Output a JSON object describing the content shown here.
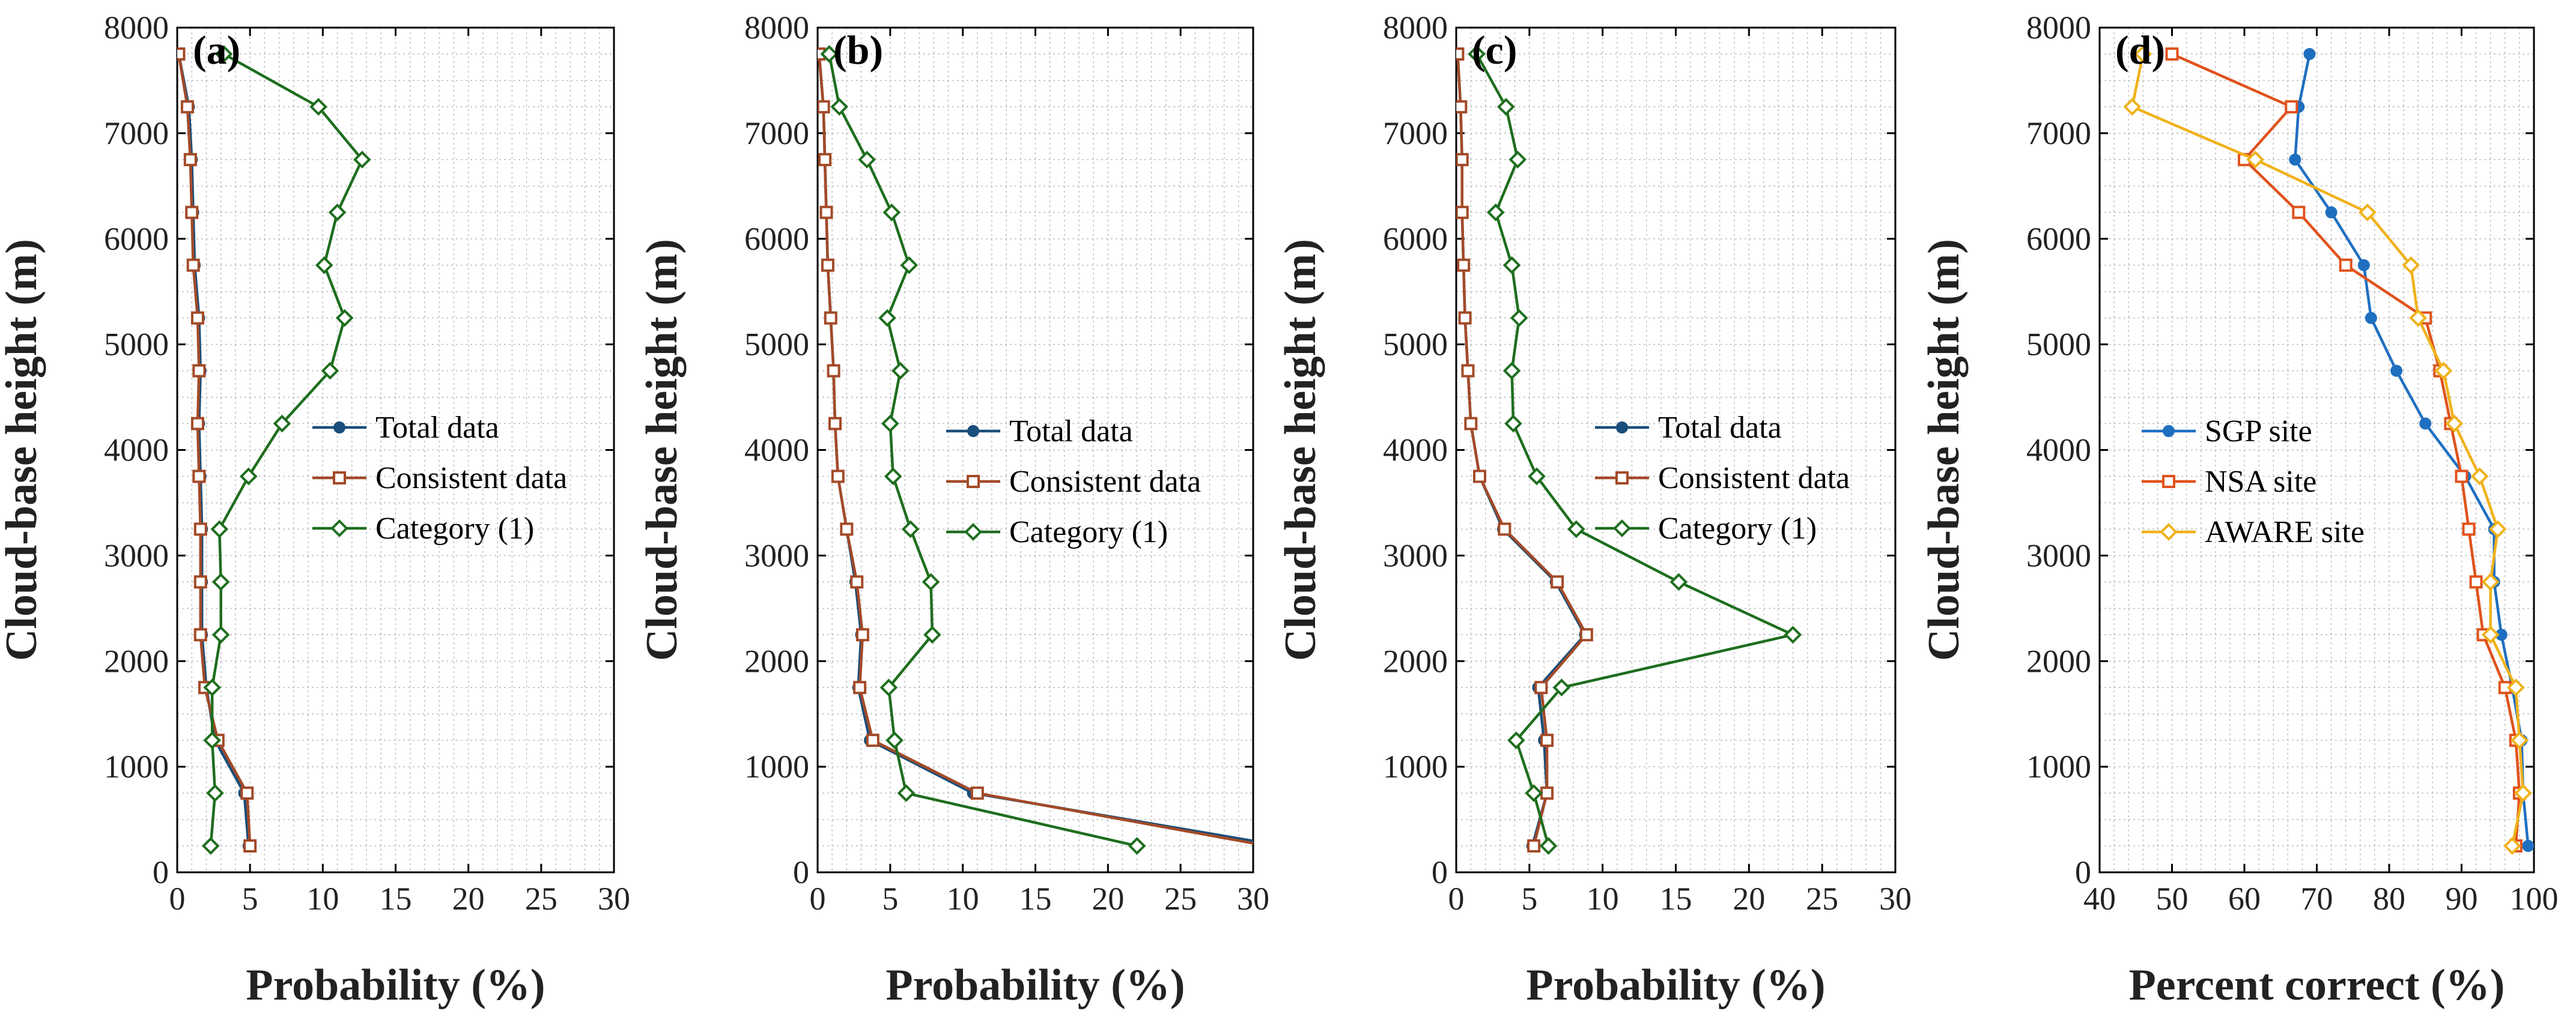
{
  "chart_data": [
    {
      "type": "line",
      "panel_label": "(a)",
      "xlabel": "Probability (%)",
      "ylabel": "Cloud-base height (m)",
      "xlim": [
        0,
        30
      ],
      "ylim": [
        0,
        8000
      ],
      "xticks": [
        "0",
        "5",
        "10",
        "15",
        "20",
        "25",
        "30"
      ],
      "yticks": [
        "0",
        "1000",
        "2000",
        "3000",
        "4000",
        "5000",
        "6000",
        "7000",
        "8000"
      ],
      "grid": true,
      "legend": "center-right",
      "y": [
        250,
        750,
        1250,
        1750,
        2250,
        2750,
        3250,
        3750,
        4250,
        4750,
        5250,
        5750,
        6250,
        6750,
        7250,
        7750
      ],
      "series": [
        {
          "name": "Total data",
          "color": "#1a4e7a",
          "marker": "circle",
          "values": [
            4.9,
            4.6,
            2.6,
            2.0,
            1.7,
            1.7,
            1.7,
            1.6,
            1.5,
            1.6,
            1.5,
            1.2,
            1.1,
            1.0,
            0.8,
            0.1
          ]
        },
        {
          "name": "Consistent data",
          "color": "#a34a28",
          "marker": "square",
          "values": [
            5.0,
            4.8,
            2.8,
            1.9,
            1.6,
            1.6,
            1.6,
            1.5,
            1.4,
            1.5,
            1.4,
            1.1,
            1.0,
            0.9,
            0.7,
            0.1
          ]
        },
        {
          "name": "Category (1)",
          "color": "#1e6e1e",
          "marker": "diamond",
          "values": [
            2.3,
            2.6,
            2.4,
            2.4,
            3.0,
            3.0,
            2.9,
            4.9,
            7.2,
            10.5,
            11.5,
            10.1,
            11.0,
            12.7,
            9.7,
            3.2
          ]
        }
      ]
    },
    {
      "type": "line",
      "panel_label": "(b)",
      "xlabel": "Probability (%)",
      "ylabel": "Cloud-base height (m)",
      "xlim": [
        0,
        30
      ],
      "ylim": [
        0,
        8000
      ],
      "xticks": [
        "0",
        "5",
        "10",
        "15",
        "20",
        "25",
        "30"
      ],
      "yticks": [
        "0",
        "1000",
        "2000",
        "3000",
        "4000",
        "5000",
        "6000",
        "7000",
        "8000"
      ],
      "grid": true,
      "legend": "center-right",
      "y": [
        250,
        750,
        1250,
        1750,
        2250,
        2750,
        3250,
        3750,
        4250,
        4750,
        5250,
        5750,
        6250,
        6750,
        7250,
        7750
      ],
      "series": [
        {
          "name": "Total data",
          "color": "#1a4e7a",
          "marker": "circle",
          "values": [
            32,
            10.7,
            3.6,
            2.8,
            3.0,
            2.6,
            2.0,
            1.4,
            1.2,
            1.1,
            0.9,
            0.7,
            0.6,
            0.5,
            0.4,
            0.1
          ]
        },
        {
          "name": "Consistent data",
          "color": "#a34a28",
          "marker": "square",
          "values": [
            31,
            11.0,
            3.8,
            2.9,
            3.1,
            2.7,
            2.0,
            1.4,
            1.2,
            1.1,
            0.9,
            0.7,
            0.6,
            0.5,
            0.4,
            0.1
          ]
        },
        {
          "name": "Category (1)",
          "color": "#1e6e1e",
          "marker": "diamond",
          "values": [
            22.0,
            6.1,
            5.3,
            4.9,
            7.9,
            7.8,
            6.4,
            5.2,
            5.0,
            5.7,
            4.8,
            6.3,
            5.1,
            3.4,
            1.5,
            0.8
          ]
        }
      ]
    },
    {
      "type": "line",
      "panel_label": "(c)",
      "xlabel": "Probability (%)",
      "ylabel": "Cloud-base height (m)",
      "xlim": [
        0,
        30
      ],
      "ylim": [
        0,
        8000
      ],
      "xticks": [
        "0",
        "5",
        "10",
        "15",
        "20",
        "25",
        "30"
      ],
      "yticks": [
        "0",
        "1000",
        "2000",
        "3000",
        "4000",
        "5000",
        "6000",
        "7000",
        "8000"
      ],
      "grid": true,
      "legend": "center-right",
      "y": [
        250,
        750,
        1250,
        1750,
        2250,
        2750,
        3250,
        3750,
        4250,
        4750,
        5250,
        5750,
        6250,
        6750,
        7250,
        7750
      ],
      "series": [
        {
          "name": "Total data",
          "color": "#1a4e7a",
          "marker": "circle",
          "values": [
            5.2,
            6.2,
            6.0,
            5.6,
            8.8,
            6.8,
            3.2,
            1.6,
            1.0,
            0.8,
            0.6,
            0.5,
            0.4,
            0.4,
            0.3,
            0.1
          ]
        },
        {
          "name": "Consistent data",
          "color": "#a34a28",
          "marker": "square",
          "values": [
            5.3,
            6.2,
            6.2,
            5.8,
            8.9,
            6.9,
            3.3,
            1.6,
            1.0,
            0.8,
            0.6,
            0.5,
            0.4,
            0.4,
            0.3,
            0.1
          ]
        },
        {
          "name": "Category (1)",
          "color": "#1e6e1e",
          "marker": "diamond",
          "values": [
            6.3,
            5.3,
            4.1,
            7.2,
            23.0,
            15.2,
            8.2,
            5.5,
            3.9,
            3.8,
            4.3,
            3.8,
            2.7,
            4.2,
            3.4,
            1.4
          ]
        }
      ]
    },
    {
      "type": "line",
      "panel_label": "(d)",
      "xlabel": "Percent correct (%)",
      "ylabel": "Cloud-base height (m)",
      "xlim": [
        40,
        100
      ],
      "ylim": [
        0,
        8000
      ],
      "xticks": [
        "40",
        "50",
        "60",
        "70",
        "80",
        "90",
        "100"
      ],
      "yticks": [
        "0",
        "1000",
        "2000",
        "3000",
        "4000",
        "5000",
        "6000",
        "7000",
        "8000"
      ],
      "grid": true,
      "legend": "center-left",
      "y": [
        250,
        750,
        1250,
        1750,
        2250,
        2750,
        3250,
        3750,
        4250,
        4750,
        5250,
        5750,
        6250,
        6750,
        7250,
        7750
      ],
      "series": [
        {
          "name": "SGP site",
          "color": "#1f6fc0",
          "marker": "circle",
          "values": [
            99.2,
            98.5,
            98.3,
            97.0,
            95.5,
            94.5,
            94.5,
            90.5,
            85.0,
            81.0,
            77.5,
            76.5,
            72.0,
            67.0,
            67.5,
            69.0
          ]
        },
        {
          "name": "NSA site",
          "color": "#e0521c",
          "marker": "square",
          "values": [
            97.5,
            98.0,
            97.5,
            96.0,
            93.0,
            92.0,
            91.0,
            90.0,
            88.5,
            87.0,
            85.0,
            74.0,
            67.5,
            60.0,
            66.5,
            50.0
          ]
        },
        {
          "name": "AWARE site",
          "color": "#f0b21a",
          "marker": "diamond",
          "values": [
            97.0,
            98.5,
            98.0,
            97.5,
            94.0,
            94.0,
            95.0,
            92.5,
            89.0,
            87.5,
            84.0,
            83.0,
            77.0,
            61.5,
            44.5,
            46.0
          ]
        }
      ]
    }
  ]
}
